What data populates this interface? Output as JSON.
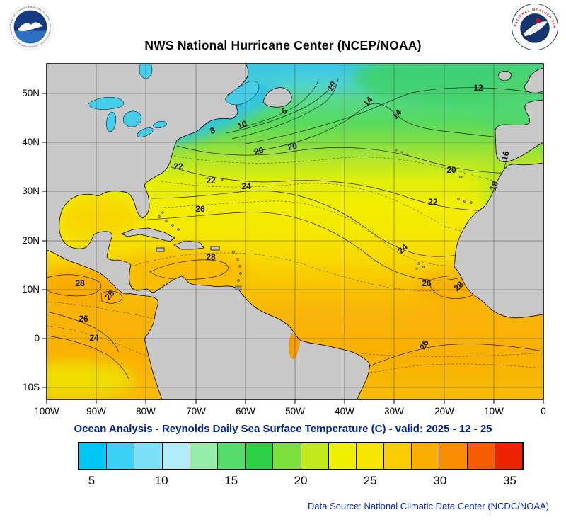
{
  "header": {
    "title": "NWS National Hurricane Center (NCEP/NOAA)",
    "noaa_ring_text": "NATIONAL OCEANIC AND ATMOSPHERIC ADMINISTRATION • U.S. DEPARTMENT OF COMMERCE",
    "nws_ring_text": "NATIONAL WEATHER SERVICE"
  },
  "map": {
    "x_ticks": [
      "100W",
      "90W",
      "80W",
      "70W",
      "60W",
      "50W",
      "40W",
      "30W",
      "20W",
      "10W",
      "0"
    ],
    "y_ticks": [
      "50N",
      "40N",
      "30N",
      "20N",
      "10N",
      "0",
      "10S"
    ],
    "contour_labels": [
      "10",
      "12",
      "6",
      "14",
      "14",
      "8",
      "10",
      "20",
      "20",
      "16",
      "22",
      "20",
      "22",
      "24",
      "18",
      "22",
      "26",
      "28",
      "24",
      "28",
      "28",
      "26",
      "28",
      "26",
      "24",
      "26"
    ]
  },
  "subtitle": "Ocean Analysis - Reynolds Daily Sea Surface Temperature (C) - valid: 2025 - 12 - 25",
  "colorbar": {
    "ticks": [
      "5",
      "10",
      "15",
      "20",
      "25",
      "30",
      "35"
    ],
    "range_c": [
      4,
      36
    ],
    "colors": [
      "#00c6f6",
      "#3cd2f7",
      "#7ce0f9",
      "#b2ecfa",
      "#96eeab",
      "#55dc6b",
      "#2ad145",
      "#7ce03c",
      "#c0ea1e",
      "#eef000",
      "#f6e600",
      "#f8cc00",
      "#f9ae00",
      "#fa8c00",
      "#f85c00",
      "#ee2400"
    ]
  },
  "footer": {
    "source": "Data Source: National Climatic Data Center (NCDC/NOAA)"
  },
  "chart_data": {
    "type": "heatmap",
    "title": "NWS National Hurricane Center (NCEP/NOAA)",
    "subtitle": "Ocean Analysis - Reynolds Daily Sea Surface Temperature (C) - valid: 2025 - 12 - 25",
    "variable": "Reynolds Daily Sea Surface Temperature",
    "units": "C",
    "valid_date": "2025 - 12 - 25",
    "x_ticks": [
      "100W",
      "90W",
      "80W",
      "70W",
      "60W",
      "50W",
      "40W",
      "30W",
      "20W",
      "10W",
      "0"
    ],
    "y_ticks": [
      "50N",
      "40N",
      "30N",
      "20N",
      "10N",
      "0",
      "10S"
    ],
    "lon_range": [
      "100W",
      "0"
    ],
    "lat_range": [
      "10S",
      "56N"
    ],
    "colorbar": {
      "ticks": [
        5,
        10,
        15,
        20,
        25,
        30,
        35
      ],
      "range": [
        4,
        36
      ],
      "cell_interval_c": 2
    },
    "contour_interval_c": 2,
    "contour_labels_shown": [
      {
        "value": 10,
        "near": "51N 42W"
      },
      {
        "value": 12,
        "near": "50N 13W"
      },
      {
        "value": 6,
        "near": "46N 52W"
      },
      {
        "value": 14,
        "near": "48N 35W"
      },
      {
        "value": 14,
        "near": "45N 29W"
      },
      {
        "value": 8,
        "near": "42N 67W"
      },
      {
        "value": 10,
        "near": "43N 60W"
      },
      {
        "value": 20,
        "near": "38N 57W"
      },
      {
        "value": 20,
        "near": "39N 51W"
      },
      {
        "value": 16,
        "near": "37N 7W"
      },
      {
        "value": 22,
        "near": "34N 74W"
      },
      {
        "value": 20,
        "near": "34N 19W"
      },
      {
        "value": 22,
        "near": "32N 67W"
      },
      {
        "value": 24,
        "near": "30N 60W"
      },
      {
        "value": 18,
        "near": "31N 9W"
      },
      {
        "value": 22,
        "near": "27N 22W"
      },
      {
        "value": 26,
        "near": "26N 69W"
      },
      {
        "value": 28,
        "near": "16N 67W"
      },
      {
        "value": 24,
        "near": "18N 28W"
      },
      {
        "value": 28,
        "near": "11N 93W"
      },
      {
        "value": 28,
        "near": "9N 87W"
      },
      {
        "value": 26,
        "near": "11N 24W"
      },
      {
        "value": 28,
        "near": "10N 17W"
      },
      {
        "value": 26,
        "near": "4N 93W"
      },
      {
        "value": 24,
        "near": "0N 91W"
      },
      {
        "value": 26,
        "near": "2S 24W"
      }
    ],
    "pattern_summary": "SST rises from 4-8C off Atlantic Canada (cyan) through green mid-latitudes (12-18C), yellow subtropics (20-26C) to orange tropics (26-28C) in the Caribbean, Gulf of Mexico and eastern tropical Atlantic; a cooler 24C tongue appears in the equatorial east Pacific corner."
  }
}
